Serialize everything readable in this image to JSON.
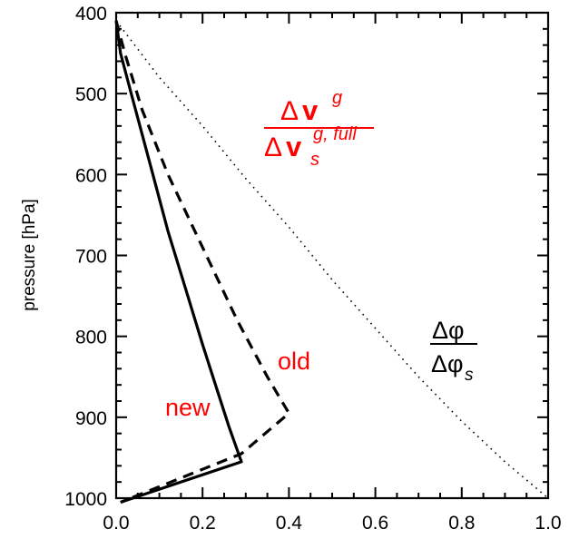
{
  "chart_data": {
    "type": "line",
    "title": "",
    "xlabel": "",
    "ylabel": "pressure [hPa]",
    "xlim": [
      0.0,
      1.0
    ],
    "ylim": [
      1000,
      400
    ],
    "y_inverted": true,
    "grid": false,
    "legend": "none",
    "x_ticks": [
      "0.0",
      "0.2",
      "0.4",
      "0.6",
      "0.8",
      "1.0"
    ],
    "y_ticks": [
      "400",
      "500",
      "600",
      "700",
      "800",
      "900",
      "1000"
    ],
    "series": [
      {
        "name": "new",
        "style": "solid",
        "color": "#000000",
        "x": [
          0.0,
          0.01,
          0.04,
          0.08,
          0.12,
          0.16,
          0.2,
          0.23,
          0.26,
          0.29,
          0.01
        ],
        "y": [
          410,
          450,
          510,
          590,
          670,
          740,
          810,
          860,
          910,
          955,
          1005
        ]
      },
      {
        "name": "old",
        "style": "dashed",
        "color": "#000000",
        "x": [
          0.0,
          0.02,
          0.06,
          0.12,
          0.2,
          0.28,
          0.35,
          0.4,
          0.29,
          0.01
        ],
        "y": [
          410,
          450,
          520,
          600,
          690,
          780,
          850,
          895,
          945,
          1005
        ]
      },
      {
        "name": "",
        "style": "dotted",
        "color": "#000000",
        "x": [
          0.0,
          0.1,
          0.2,
          0.3,
          0.4,
          0.5,
          0.6,
          0.7,
          0.8,
          0.9,
          1.0
        ],
        "y": [
          410,
          480,
          540,
          605,
          665,
          730,
          790,
          850,
          905,
          955,
          1000
        ]
      }
    ],
    "annotations": {
      "new_label": "new",
      "old_label": "old",
      "vg_numerator": "Δ",
      "vg_bold": "v",
      "vg_sup": "g",
      "vg_denominator": "Δ",
      "vg_den_bold": "v",
      "vg_den_sub": "s",
      "vg_den_sup": "g, full",
      "phi_numerator": "Δφ",
      "phi_denominator": "Δφ",
      "phi_sub": "s"
    },
    "colors": {
      "annotation_red": "#ff0000",
      "lines": "#000000"
    }
  }
}
